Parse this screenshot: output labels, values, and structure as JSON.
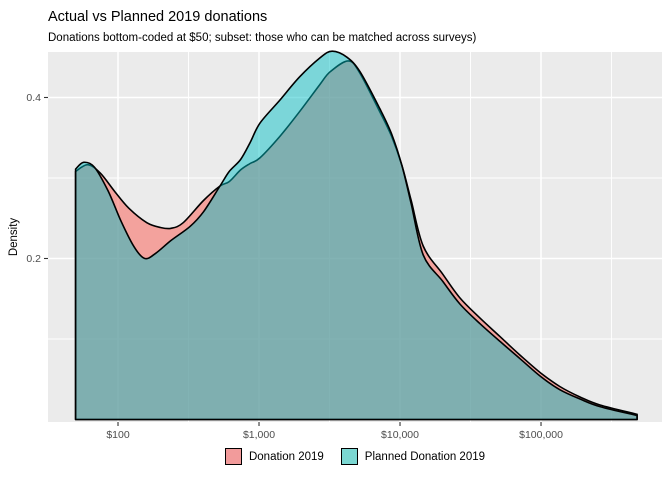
{
  "title": "Actual vs Planned 2019 donations",
  "subtitle": "Donations bottom-coded at $50; subset: those who can be matched across surveys)",
  "colors": {
    "panel_background": "#EBEBEB",
    "gridline": "#FFFFFF",
    "axis_text": "#4D4D4D",
    "tick_mark": "#333333",
    "outline": "#000000",
    "donation_fill": "#F8766D",
    "planned_fill": "#00BFC4",
    "legend_swatch_donation": "#F29B9B",
    "legend_swatch_planned": "#7BD7D2"
  },
  "legend": {
    "items": [
      {
        "label": "Donation 2019",
        "swatch": "#F29B9B"
      },
      {
        "label": "Planned Donation 2019",
        "swatch": "#7BD7D2"
      }
    ]
  },
  "chart_data": {
    "type": "area",
    "title": "Actual vs Planned 2019 donations",
    "subtitle": "Donations bottom-coded at $50; subset: those who can be matched across surveys)",
    "xlabel": "",
    "ylabel": "Density",
    "x_scale": "log10",
    "xlim_log10": [
      1.5035,
      5.858
    ],
    "ylim": [
      -0.0031,
      0.4565
    ],
    "grid": true,
    "legend_position": "bottom",
    "x_ticks": [
      {
        "value": 100,
        "label": "$100"
      },
      {
        "value": 1000,
        "label": "$1,000"
      },
      {
        "value": 10000,
        "label": "$10,000"
      },
      {
        "value": 100000,
        "label": "$100,000"
      }
    ],
    "x_minor": [
      316.23,
      3162.3,
      31623,
      316228
    ],
    "y_ticks": [
      {
        "value": 0.2,
        "label": "0.2"
      },
      {
        "value": 0.4,
        "label": "0.4"
      }
    ],
    "y_minor": [
      0.1,
      0.3
    ],
    "series": [
      {
        "name": "Donation 2019",
        "color": "#F8766D",
        "fill_alpha": 0.62,
        "points": [
          [
            50,
            0.308
          ],
          [
            61,
            0.3165
          ],
          [
            75,
            0.306
          ],
          [
            95,
            0.283
          ],
          [
            120,
            0.262
          ],
          [
            160,
            0.2445
          ],
          [
            200,
            0.2385
          ],
          [
            238,
            0.2375
          ],
          [
            290,
            0.2445
          ],
          [
            404,
            0.272
          ],
          [
            529,
            0.29
          ],
          [
            615,
            0.2955
          ],
          [
            740,
            0.31
          ],
          [
            865,
            0.318
          ],
          [
            1015,
            0.325
          ],
          [
            1410,
            0.352
          ],
          [
            1950,
            0.383
          ],
          [
            2700,
            0.416
          ],
          [
            3200,
            0.432
          ],
          [
            4300,
            0.4455
          ],
          [
            5200,
            0.43
          ],
          [
            7200,
            0.382
          ],
          [
            8700,
            0.352
          ],
          [
            10300,
            0.316
          ],
          [
            12000,
            0.272
          ],
          [
            14600,
            0.2155
          ],
          [
            20000,
            0.181
          ],
          [
            26600,
            0.151
          ],
          [
            36900,
            0.126
          ],
          [
            51200,
            0.103
          ],
          [
            71000,
            0.08
          ],
          [
            100000,
            0.0575
          ],
          [
            136000,
            0.041
          ],
          [
            189000,
            0.028
          ],
          [
            262000,
            0.018
          ],
          [
            480000,
            0.0065
          ]
        ]
      },
      {
        "name": "Planned Donation 2019",
        "color": "#00BFC4",
        "fill_alpha": 0.48,
        "points": [
          [
            50,
            0.311
          ],
          [
            57,
            0.3195
          ],
          [
            68,
            0.3135
          ],
          [
            85,
            0.284
          ],
          [
            105,
            0.2465
          ],
          [
            130,
            0.2145
          ],
          [
            155,
            0.2
          ],
          [
            185,
            0.2065
          ],
          [
            238,
            0.2225
          ],
          [
            325,
            0.24
          ],
          [
            404,
            0.258
          ],
          [
            529,
            0.29
          ],
          [
            615,
            0.308
          ],
          [
            740,
            0.323
          ],
          [
            865,
            0.344
          ],
          [
            1015,
            0.368
          ],
          [
            1410,
            0.397
          ],
          [
            1950,
            0.426
          ],
          [
            2700,
            0.449
          ],
          [
            3300,
            0.4575
          ],
          [
            4200,
            0.45
          ],
          [
            5200,
            0.432
          ],
          [
            7200,
            0.386
          ],
          [
            8700,
            0.355
          ],
          [
            10300,
            0.316
          ],
          [
            12000,
            0.268
          ],
          [
            14600,
            0.2045
          ],
          [
            20000,
            0.172
          ],
          [
            26600,
            0.1435
          ],
          [
            36900,
            0.119
          ],
          [
            51200,
            0.097
          ],
          [
            71000,
            0.0755
          ],
          [
            100000,
            0.053
          ],
          [
            136000,
            0.037
          ],
          [
            189000,
            0.0255
          ],
          [
            262000,
            0.016
          ],
          [
            480000,
            0.005
          ]
        ]
      }
    ]
  }
}
